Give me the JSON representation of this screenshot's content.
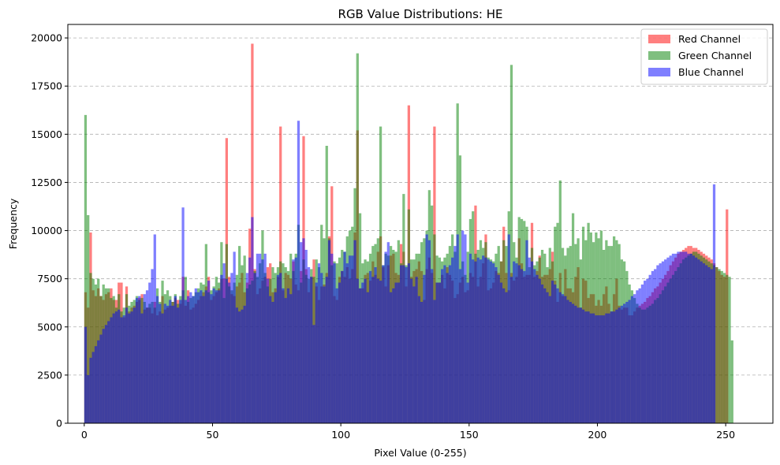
{
  "chart_data": {
    "type": "bar",
    "title": "RGB Value Distributions: HE",
    "xlabel": "Pixel Value (0-255)",
    "ylabel": "Frequency",
    "xlim": [
      -6.4,
      268.4
    ],
    "ylim": [
      0,
      20700
    ],
    "xticks": [
      0,
      50,
      100,
      150,
      200,
      250
    ],
    "yticks": [
      0,
      2500,
      5000,
      7500,
      10000,
      12500,
      15000,
      17500,
      20000
    ],
    "grid": "y-dashed",
    "legend_position": "top-right",
    "bin_range": [
      0,
      256
    ],
    "series": [
      {
        "name": "Red Channel",
        "color": "#ff0000",
        "alpha": 0.5,
        "values": [
          6800,
          6000,
          9900,
          6900,
          6600,
          7000,
          6600,
          6400,
          6700,
          6800,
          7000,
          6400,
          6400,
          7300,
          7300,
          5500,
          7100,
          5800,
          6000,
          6100,
          6300,
          6500,
          6700,
          5900,
          6000,
          6000,
          5700,
          6300,
          5600,
          5800,
          6600,
          5900,
          6000,
          6100,
          6300,
          6500,
          6400,
          6200,
          7600,
          6100,
          6900,
          5900,
          6000,
          6200,
          6400,
          6600,
          6800,
          7100,
          7600,
          6400,
          6600,
          6800,
          7000,
          7500,
          7500,
          14800,
          7600,
          6700,
          6600,
          7100,
          7300,
          7800,
          6800,
          7300,
          10100,
          19700,
          8000,
          6700,
          7000,
          7400,
          7600,
          8100,
          8300,
          6800,
          7000,
          7600,
          15400,
          6900,
          7800,
          7700,
          7500,
          8400,
          7200,
          6900,
          7900,
          14900,
          8000,
          6800,
          7600,
          8500,
          7100,
          6400,
          7100,
          7200,
          7800,
          9700,
          12300,
          6600,
          6400,
          7600,
          7900,
          7600,
          8100,
          7500,
          8000,
          9900,
          15200,
          7000,
          7000,
          7700,
          7800,
          7400,
          8400,
          7700,
          8900,
          9700,
          8100,
          7100,
          8200,
          8700,
          8800,
          7800,
          7700,
          9300,
          8900,
          7100,
          16500,
          7600,
          7900,
          8000,
          8400,
          7900,
          6400,
          8000,
          8600,
          7800,
          15400,
          7300,
          7300,
          7700,
          7000,
          8100,
          7700,
          7400,
          6500,
          6700,
          7300,
          7600,
          6800,
          6900,
          7800,
          7600,
          11300,
          7100,
          7600,
          8300,
          9800,
          6900,
          7000,
          7300,
          7900,
          7800,
          8400,
          10200,
          7800,
          6900,
          7800,
          7400,
          7600,
          9600,
          8300,
          7600,
          7700,
          7700,
          10400,
          7600,
          7900,
          8700,
          7600,
          7700,
          7700,
          8000,
          8900,
          7400,
          6300,
          7800,
          6600,
          8000,
          7000,
          7000,
          6800,
          7600,
          8100,
          6000,
          7500,
          7400,
          6500,
          6700,
          6700,
          6100,
          6400,
          6100,
          6700,
          7100,
          6200,
          5800,
          6700,
          7500,
          6100,
          5900,
          6000,
          6000,
          5600,
          5600,
          5800,
          6000,
          6100,
          6200,
          6300,
          6500,
          6600,
          6800,
          7000,
          7100,
          7300,
          7500,
          7700,
          7900,
          8200,
          8400,
          8600,
          8800,
          8900,
          9000,
          9100,
          9200,
          9200,
          9100,
          9100,
          9000,
          8900,
          8800,
          8700,
          8600,
          8500,
          8300,
          8100,
          7900,
          7700,
          7600,
          11100
        ]
      },
      {
        "name": "Green Channel",
        "color": "#008000",
        "alpha": 0.5,
        "values": [
          16000,
          10800,
          7800,
          7500,
          7200,
          7500,
          6600,
          7200,
          7000,
          7000,
          6500,
          6600,
          6000,
          6700,
          5800,
          6000,
          6700,
          6100,
          6300,
          6400,
          6600,
          6400,
          6500,
          6300,
          6000,
          6200,
          6300,
          6000,
          7000,
          6300,
          7400,
          6700,
          6900,
          6600,
          6300,
          6700,
          6200,
          6600,
          6900,
          7600,
          6300,
          6500,
          6600,
          6800,
          7000,
          7300,
          7200,
          9300,
          6800,
          6900,
          7100,
          7600,
          7300,
          9400,
          6500,
          9300,
          7100,
          6900,
          7300,
          7700,
          9200,
          8200,
          8700,
          7000,
          7200,
          7400,
          7900,
          7600,
          8300,
          10000,
          7800,
          7100,
          7500,
          8100,
          7800,
          8100,
          8400,
          8300,
          8100,
          7900,
          8800,
          7900,
          8800,
          10300,
          7300,
          8500,
          7700,
          7500,
          8000,
          7600,
          8500,
          8100,
          10300,
          9600,
          14400,
          9600,
          8200,
          8400,
          8300,
          8600,
          9000,
          8900,
          9700,
          10000,
          10200,
          12200,
          19200,
          10900,
          8300,
          8500,
          8400,
          8800,
          9200,
          9300,
          9600,
          15400,
          8200,
          8800,
          8700,
          9200,
          9000,
          8900,
          9500,
          8300,
          11900,
          8200,
          11100,
          8500,
          8500,
          8800,
          8800,
          9400,
          9600,
          10000,
          12100,
          11300,
          9800,
          8700,
          8600,
          8400,
          8600,
          8800,
          9200,
          9800,
          8900,
          16600,
          13900,
          8400,
          7700,
          8900,
          10600,
          11000,
          8800,
          9000,
          9500,
          9100,
          9400,
          8600,
          8500,
          8400,
          8800,
          9200,
          8400,
          9500,
          9200,
          11000,
          18600,
          9400,
          8600,
          10700,
          10600,
          10500,
          10200,
          8100,
          9100,
          8200,
          8400,
          8600,
          9000,
          8800,
          8100,
          9100,
          8400,
          10200,
          10400,
          12600,
          9100,
          8700,
          9100,
          9200,
          10900,
          9300,
          9600,
          8500,
          10200,
          9500,
          10400,
          9900,
          9400,
          9900,
          9600,
          10000,
          9000,
          9500,
          9200,
          9200,
          9700,
          9500,
          9300,
          8500,
          8400,
          7900,
          7200,
          6900,
          6500,
          6200,
          6000,
          5900,
          5900,
          6000,
          6100,
          6200,
          6400,
          6500,
          6700,
          6900,
          7100,
          7300,
          7500,
          7700,
          7900,
          8100,
          8300,
          8500,
          8600,
          8700,
          8800,
          8900,
          8900,
          8800,
          8700,
          8600,
          8500,
          8400,
          8300,
          8200,
          8100,
          8000,
          7900,
          7800,
          7700,
          7600,
          4300
        ]
      },
      {
        "name": "Blue Channel",
        "color": "#0000ff",
        "alpha": 0.5,
        "values": [
          5000,
          2500,
          3400,
          3700,
          4000,
          4300,
          4600,
          4900,
          5100,
          5300,
          5500,
          5700,
          5800,
          5900,
          5500,
          5600,
          6000,
          5700,
          5800,
          6000,
          6500,
          6600,
          5700,
          6700,
          6900,
          7300,
          8000,
          9800,
          6600,
          6200,
          5700,
          6200,
          6100,
          6400,
          6100,
          6600,
          6000,
          6400,
          11200,
          6400,
          6600,
          6800,
          6600,
          7000,
          6800,
          6900,
          6600,
          6900,
          7400,
          6700,
          7000,
          6900,
          6900,
          7700,
          8300,
          7500,
          7300,
          7800,
          8900,
          6000,
          5800,
          5900,
          6100,
          7800,
          8600,
          10700,
          7800,
          8800,
          8800,
          8500,
          8800,
          7500,
          6600,
          6300,
          6800,
          7700,
          7800,
          7000,
          6500,
          7000,
          6700,
          8500,
          8600,
          15700,
          9400,
          9600,
          9000,
          8100,
          7600,
          5100,
          7300,
          8300,
          7800,
          7100,
          7600,
          9500,
          8800,
          8300,
          7000,
          7300,
          7900,
          8900,
          8300,
          8700,
          8700,
          9500,
          7500,
          7000,
          7300,
          7500,
          6800,
          7900,
          7600,
          8100,
          7500,
          7400,
          8200,
          8900,
          9400,
          6800,
          7000,
          7300,
          7300,
          8200,
          8200,
          8100,
          8300,
          7500,
          7100,
          7600,
          6600,
          6300,
          7700,
          9800,
          9500,
          8000,
          6400,
          7300,
          7300,
          8000,
          8200,
          7800,
          8200,
          8600,
          9200,
          9800,
          8000,
          10000,
          9800,
          7300,
          8800,
          8500,
          8400,
          8600,
          8500,
          8700,
          8600,
          8500,
          8400,
          8300,
          8100,
          7700,
          7300,
          7000,
          6800,
          9800,
          7600,
          8400,
          8300,
          8200,
          8000,
          7900,
          9500,
          8600,
          8400,
          8000,
          7700,
          7500,
          7200,
          7000,
          6800,
          6600,
          7400,
          7200,
          7000,
          6800,
          6700,
          6600,
          6400,
          6300,
          6200,
          6100,
          6000,
          6000,
          5900,
          5800,
          5800,
          5700,
          5700,
          5600,
          5600,
          5600,
          5600,
          5700,
          5700,
          5800,
          5800,
          5900,
          6000,
          6100,
          6200,
          6300,
          6400,
          6600,
          6700,
          6900,
          7000,
          7200,
          7400,
          7500,
          7700,
          7900,
          8000,
          8200,
          8300,
          8400,
          8500,
          8600,
          8700,
          8800,
          8800,
          8900,
          8900,
          8900,
          8900,
          8800,
          8800,
          8700,
          8600,
          8500,
          8400,
          8300,
          8200,
          8100,
          8000,
          12400
        ]
      }
    ]
  }
}
